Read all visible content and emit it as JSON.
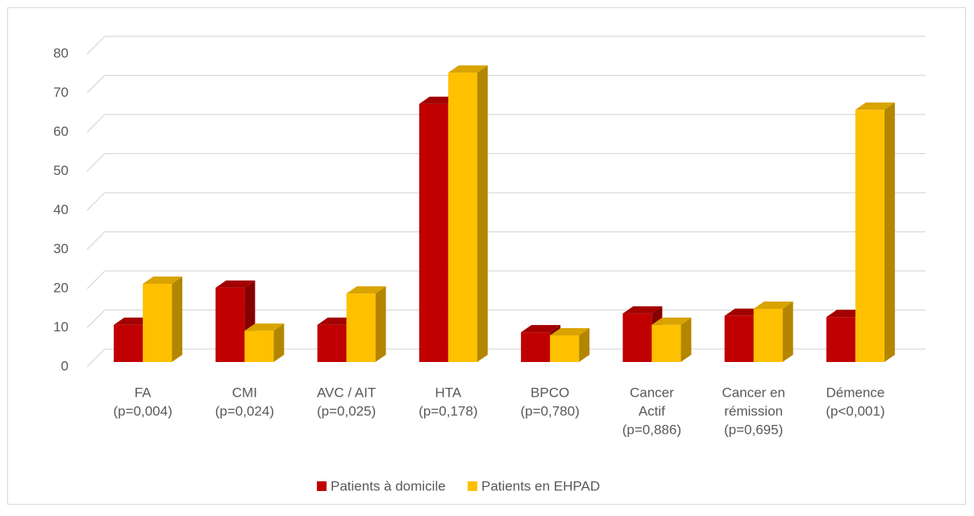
{
  "chart_data": {
    "type": "bar3d",
    "categories": [
      [
        "FA",
        "(p=0,004)"
      ],
      [
        "CMI",
        "(p=0,024)"
      ],
      [
        "AVC / AIT",
        "(p=0,025)"
      ],
      [
        "HTA",
        "(p=0,178)"
      ],
      [
        "BPCO",
        "(p=0,780)"
      ],
      [
        "Cancer",
        "Actif",
        "(p=0,886)"
      ],
      [
        "Cancer en",
        "rémission",
        "(p=0,695)"
      ],
      [
        "Démence",
        "(p<0,001)"
      ]
    ],
    "series": [
      {
        "name": "Patients à domicile",
        "color": "#c00000",
        "values": [
          9.5,
          19,
          9.5,
          66,
          7.6,
          12.4,
          11.8,
          11.5
        ]
      },
      {
        "name": "Patients en EHPAD",
        "color": "#ffc000",
        "values": [
          20,
          8,
          17.5,
          74,
          6.8,
          9.5,
          13.6,
          64.5
        ]
      }
    ],
    "ylim": [
      0,
      80
    ],
    "yticks": [
      0,
      10,
      20,
      30,
      40,
      50,
      60,
      70,
      80
    ],
    "grid": true,
    "legend": "bottom"
  }
}
